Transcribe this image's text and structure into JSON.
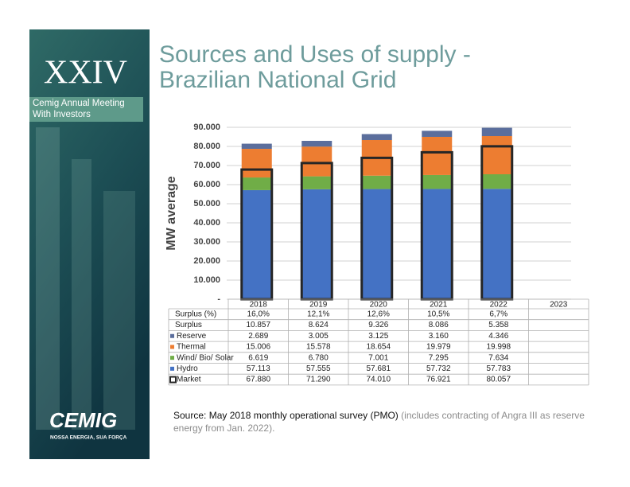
{
  "title_lines": [
    "Sources and Uses of supply -",
    "Brazilian National Grid"
  ],
  "panel": {
    "edition": "XXIV",
    "meeting": [
      "Cemig Annual Meeting",
      "With Investors"
    ]
  },
  "logo": {
    "name": "CEMIG",
    "tagline": "NOSSA ENERGIA, SUA FORÇA"
  },
  "source": {
    "label": "Source:",
    "text": "May 2018 monthly operational survey (PMO)",
    "note": "(includes contracting of Angra III as reserve energy from Jan. 2022)."
  },
  "chart_data": {
    "type": "bar",
    "stacked": true,
    "y_label": "MW average",
    "categories": [
      "2018",
      "2019",
      "2020",
      "2021",
      "2022",
      "2023"
    ],
    "ylim": [
      0,
      90000
    ],
    "yticks": [
      {
        "value": 0,
        "label": "-"
      },
      {
        "value": 10000,
        "label": "10.000"
      },
      {
        "value": 20000,
        "label": "20.000"
      },
      {
        "value": 30000,
        "label": "30.000"
      },
      {
        "value": 40000,
        "label": "40.000"
      },
      {
        "value": 50000,
        "label": "50.000"
      },
      {
        "value": 60000,
        "label": "60.000"
      },
      {
        "value": 70000,
        "label": "70.000"
      },
      {
        "value": 80000,
        "label": "80.000"
      },
      {
        "value": 90000,
        "label": "90.000"
      }
    ],
    "grid": true,
    "table_rows": [
      {
        "name": "Surplus (%)",
        "values": [
          16.0,
          12.1,
          12.6,
          10.5,
          6.7,
          null
        ],
        "value_labels": [
          "16,0%",
          "12,1%",
          "12,6%",
          "10,5%",
          "6,7%",
          null
        ]
      },
      {
        "name": "Surplus",
        "values": [
          10857,
          8624,
          9326,
          8086,
          5358,
          null
        ],
        "value_labels": [
          "10.857",
          "8.624",
          "9.326",
          "8.086",
          "5.358",
          null
        ]
      }
    ],
    "series": [
      {
        "name": "Hydro",
        "color": "#4472c4",
        "values": [
          57113,
          57555,
          57681,
          57732,
          57783,
          null
        ],
        "value_labels": [
          "57.113",
          "57.555",
          "57.681",
          "57.732",
          "57.783",
          null
        ]
      },
      {
        "name": "Wind/ Bio/ Solar",
        "color": "#70ad47",
        "values": [
          6619,
          6780,
          7001,
          7295,
          7634,
          null
        ],
        "value_labels": [
          "6.619",
          "6.780",
          "7.001",
          "7.295",
          "7.634",
          null
        ]
      },
      {
        "name": "Thermal",
        "color": "#ed7d31",
        "values": [
          15006,
          15578,
          18654,
          19979,
          19998,
          null
        ],
        "value_labels": [
          "15.006",
          "15.578",
          "18.654",
          "19.979",
          "19.998",
          null
        ]
      },
      {
        "name": "Reserve",
        "color": "#5b6e9c",
        "values": [
          2689,
          3005,
          3125,
          3160,
          4346,
          null
        ],
        "value_labels": [
          "2.689",
          "3.005",
          "3.125",
          "3.160",
          "4.346",
          null
        ]
      }
    ],
    "market": {
      "name": "Market",
      "color": "#262626",
      "values": [
        67880,
        71290,
        74010,
        76921,
        80057,
        null
      ],
      "value_labels": [
        "67.880",
        "71.290",
        "74.010",
        "76.921",
        "80.057",
        null
      ]
    }
  }
}
